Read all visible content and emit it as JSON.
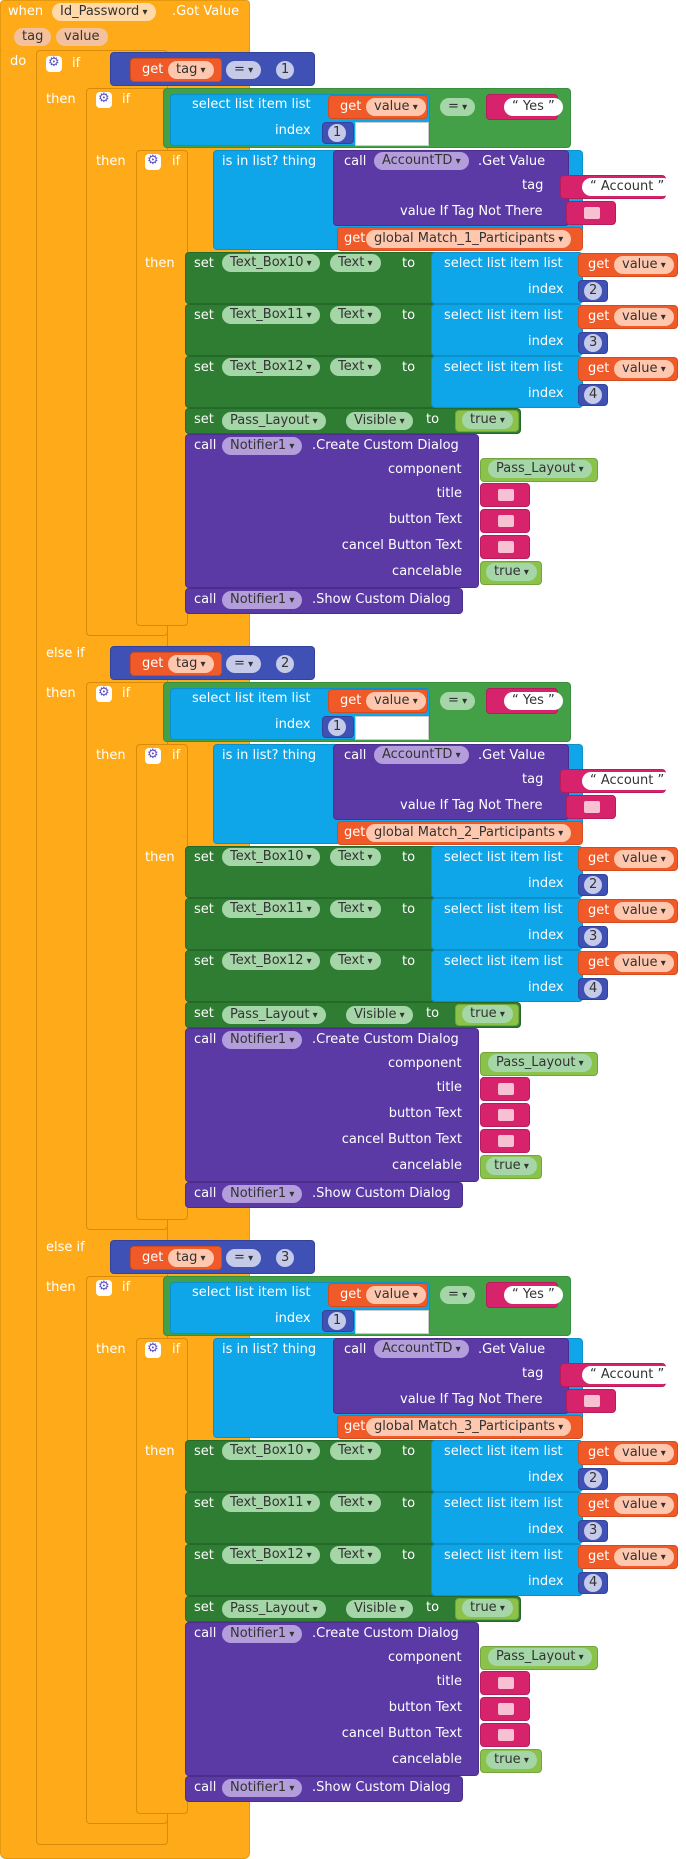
{
  "event": {
    "when": "when",
    "component": "Id_Password",
    "event_name": ".Got Value",
    "param1": "tag",
    "param2": "value",
    "do": "do"
  },
  "kw": {
    "if": "if",
    "then": "then",
    "else_if": "else if",
    "get": "get",
    "select_list_item": "select list item  list",
    "index": "index",
    "is_in_list": "is in list? thing",
    "list": "list",
    "call": "call",
    "set": "set",
    "to": "to",
    "eq": "=",
    "get_value_method": ".Get Value",
    "tag_label": "tag",
    "value_if_not": "value If Tag Not There",
    "create_dialog": ".Create Custom Dialog",
    "component": "component",
    "title": "title",
    "button_text": "button Text",
    "cancel_button_text": "cancel Button Text",
    "cancelable": "cancelable",
    "show_dialog": ".Show Custom Dialog",
    "true": "true",
    "yes": "Yes",
    "account": "Account",
    "tag_var": "tag",
    "value_var": "value",
    "text_prop": "Text",
    "visible_prop": "Visible"
  },
  "components": {
    "tinydb": "AccountTD",
    "notifier": "Notifier1",
    "layout": "Pass_Layout",
    "box10": "Text_Box10",
    "box11": "Text_Box11",
    "box12": "Text_Box12"
  },
  "branches": [
    {
      "tag_num": "1",
      "global": "global Match_1_Participants",
      "idx": [
        "1",
        "2",
        "3",
        "4"
      ]
    },
    {
      "tag_num": "2",
      "global": "global Match_2_Participants",
      "idx": [
        "1",
        "2",
        "3",
        "4"
      ]
    },
    {
      "tag_num": "3",
      "global": "global Match_3_Participants",
      "idx": [
        "1",
        "2",
        "3",
        "4"
      ]
    }
  ]
}
